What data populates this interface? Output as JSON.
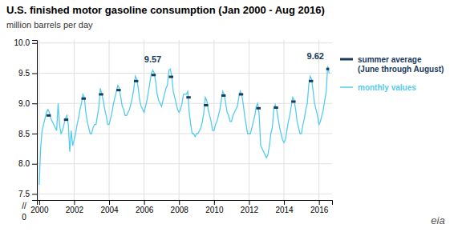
{
  "chart_data": {
    "type": "line",
    "title": "U.S. finished motor gasoline consumption (Jan 2000 - Aug 2016)",
    "ylabel": "million barrels per day",
    "xlim": [
      1999.87,
      2016.75
    ],
    "ylim": [
      7.4,
      10.05
    ],
    "xticks": [
      2000,
      2002,
      2004,
      2006,
      2008,
      2010,
      2012,
      2014,
      2016
    ],
    "yticks": [
      7.5,
      {
        "value": 8,
        "label": "8.0"
      },
      8.5,
      {
        "value": 9,
        "label": "9.0"
      },
      9.5,
      {
        "value": 10,
        "label": "10.0"
      }
    ],
    "grid": true,
    "legend": "right",
    "series": [
      {
        "name": "monthly values",
        "color": "#55CCEE",
        "type": "line",
        "x": [
          2000.0,
          2000.083,
          2000.167,
          2000.25,
          2000.333,
          2000.417,
          2000.5,
          2000.583,
          2000.667,
          2000.75,
          2000.833,
          2000.917,
          2001.0,
          2001.083,
          2001.167,
          2001.25,
          2001.333,
          2001.417,
          2001.5,
          2001.583,
          2001.667,
          2001.75,
          2001.833,
          2001.917,
          2002.0,
          2002.083,
          2002.167,
          2002.25,
          2002.333,
          2002.417,
          2002.5,
          2002.583,
          2002.667,
          2002.75,
          2002.833,
          2002.917,
          2003.0,
          2003.083,
          2003.167,
          2003.25,
          2003.333,
          2003.417,
          2003.5,
          2003.583,
          2003.667,
          2003.75,
          2003.833,
          2003.917,
          2004.0,
          2004.083,
          2004.167,
          2004.25,
          2004.333,
          2004.417,
          2004.5,
          2004.583,
          2004.667,
          2004.75,
          2004.833,
          2004.917,
          2005.0,
          2005.083,
          2005.167,
          2005.25,
          2005.333,
          2005.417,
          2005.5,
          2005.583,
          2005.667,
          2005.75,
          2005.833,
          2005.917,
          2006.0,
          2006.083,
          2006.167,
          2006.25,
          2006.333,
          2006.417,
          2006.5,
          2006.583,
          2006.667,
          2006.75,
          2006.833,
          2006.917,
          2007.0,
          2007.083,
          2007.167,
          2007.25,
          2007.333,
          2007.417,
          2007.5,
          2007.583,
          2007.667,
          2007.75,
          2007.833,
          2007.917,
          2008.0,
          2008.083,
          2008.167,
          2008.25,
          2008.333,
          2008.417,
          2008.5,
          2008.583,
          2008.667,
          2008.75,
          2008.833,
          2008.917,
          2009.0,
          2009.083,
          2009.167,
          2009.25,
          2009.333,
          2009.417,
          2009.5,
          2009.583,
          2009.667,
          2009.75,
          2009.833,
          2009.917,
          2010.0,
          2010.083,
          2010.167,
          2010.25,
          2010.333,
          2010.417,
          2010.5,
          2010.583,
          2010.667,
          2010.75,
          2010.833,
          2010.917,
          2011.0,
          2011.083,
          2011.167,
          2011.25,
          2011.333,
          2011.417,
          2011.5,
          2011.583,
          2011.667,
          2011.75,
          2011.833,
          2011.917,
          2012.0,
          2012.083,
          2012.167,
          2012.25,
          2012.333,
          2012.417,
          2012.5,
          2012.583,
          2012.667,
          2012.75,
          2012.833,
          2012.917,
          2013.0,
          2013.083,
          2013.167,
          2013.25,
          2013.333,
          2013.417,
          2013.5,
          2013.583,
          2013.667,
          2013.75,
          2013.833,
          2013.917,
          2014.0,
          2014.083,
          2014.167,
          2014.25,
          2014.333,
          2014.417,
          2014.5,
          2014.583,
          2014.667,
          2014.75,
          2014.833,
          2014.917,
          2015.0,
          2015.083,
          2015.167,
          2015.25,
          2015.333,
          2015.417,
          2015.5,
          2015.583,
          2015.667,
          2015.75,
          2015.833,
          2015.917,
          2016.0,
          2016.083,
          2016.167,
          2016.25,
          2016.333,
          2016.417,
          2016.5,
          2016.583
        ],
        "values": [
          7.65,
          8.25,
          8.55,
          8.65,
          8.75,
          8.85,
          8.9,
          8.85,
          8.75,
          8.7,
          8.65,
          8.6,
          8.55,
          9.0,
          8.65,
          8.5,
          8.55,
          8.65,
          8.75,
          8.8,
          8.65,
          8.2,
          8.55,
          8.3,
          8.4,
          8.5,
          8.65,
          8.75,
          8.9,
          9.0,
          9.15,
          9.1,
          8.85,
          8.7,
          8.6,
          8.5,
          8.5,
          8.6,
          8.65,
          8.65,
          8.8,
          8.95,
          9.25,
          9.15,
          9.05,
          8.9,
          8.8,
          8.65,
          8.65,
          8.75,
          8.85,
          9.0,
          9.1,
          9.2,
          9.3,
          9.25,
          9.1,
          8.95,
          8.9,
          8.8,
          8.8,
          8.85,
          8.9,
          9.0,
          9.1,
          9.25,
          9.45,
          9.4,
          9.25,
          9.05,
          8.95,
          8.9,
          8.85,
          8.95,
          9.05,
          9.2,
          9.35,
          9.5,
          9.55,
          9.5,
          9.35,
          9.15,
          9.05,
          9.0,
          8.95,
          9.05,
          9.15,
          9.25,
          9.3,
          9.55,
          9.57,
          9.45,
          9.2,
          9.1,
          9.0,
          8.9,
          8.85,
          8.9,
          9.0,
          9.15,
          9.15,
          9.15,
          9.2,
          8.85,
          8.65,
          8.5,
          8.5,
          8.45,
          8.5,
          8.5,
          8.55,
          8.6,
          8.7,
          8.85,
          9.1,
          9.05,
          8.9,
          8.8,
          8.7,
          8.55,
          8.55,
          8.65,
          8.7,
          8.8,
          8.9,
          9.05,
          9.2,
          9.15,
          9.0,
          8.85,
          8.8,
          8.7,
          8.7,
          8.8,
          8.85,
          8.9,
          8.95,
          9.1,
          9.2,
          9.15,
          9.0,
          8.8,
          8.65,
          8.5,
          8.5,
          8.5,
          8.6,
          8.7,
          8.8,
          8.95,
          9.0,
          8.8,
          8.3,
          8.25,
          8.2,
          8.15,
          8.1,
          8.15,
          8.3,
          8.5,
          8.6,
          8.9,
          8.98,
          8.9,
          8.75,
          8.6,
          8.5,
          8.4,
          8.35,
          8.4,
          8.55,
          8.7,
          8.8,
          8.95,
          9.1,
          9.05,
          8.9,
          8.7,
          8.6,
          8.5,
          8.5,
          8.65,
          8.75,
          8.9,
          9.0,
          9.3,
          9.45,
          9.4,
          9.2,
          9.0,
          8.9,
          8.8,
          8.65,
          8.7,
          8.8,
          8.9,
          9.05,
          9.2,
          9.62,
          9.5
        ]
      },
      {
        "name": "summer average\n(June through August)",
        "color": "#1a3a5c",
        "type": "segment",
        "x_start": [
          2000.417,
          2001.417,
          2002.417,
          2003.417,
          2004.417,
          2005.417,
          2006.417,
          2007.417,
          2008.417,
          2009.417,
          2010.417,
          2011.417,
          2012.417,
          2013.417,
          2014.417,
          2015.417,
          2016.417
        ],
        "x_end": [
          2000.667,
          2001.667,
          2002.667,
          2003.667,
          2004.667,
          2005.667,
          2006.667,
          2007.667,
          2008.667,
          2009.667,
          2010.667,
          2011.667,
          2012.667,
          2013.667,
          2014.667,
          2015.667,
          2016.583
        ],
        "values": [
          8.8,
          8.73,
          9.08,
          9.15,
          9.22,
          9.37,
          9.47,
          9.44,
          9.1,
          8.97,
          9.13,
          9.15,
          8.92,
          8.93,
          9.03,
          9.37,
          9.57
        ]
      }
    ],
    "annotations": [
      {
        "text": "9.57",
        "x": 2006.5,
        "y": 9.57
      },
      {
        "text": "9.62",
        "x": 2015.8,
        "y": 9.62
      }
    ],
    "y_break": {
      "text": "//",
      "tick": 0
    },
    "credit": "eia"
  }
}
